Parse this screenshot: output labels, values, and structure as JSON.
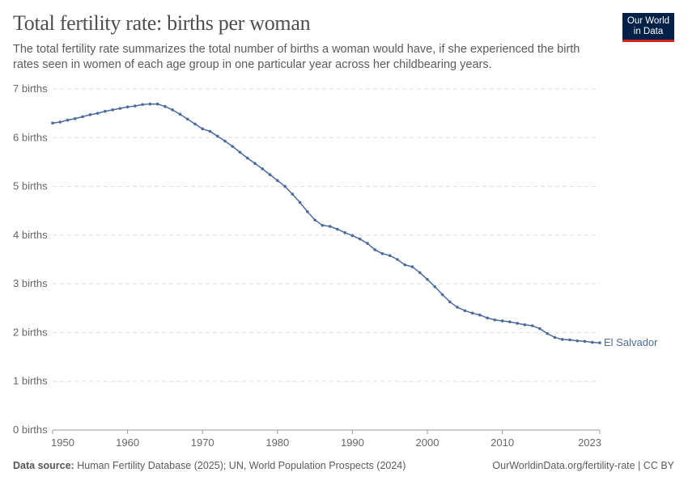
{
  "header": {
    "title": "Total fertility rate: births per woman",
    "subtitle": "The total fertility rate summarizes the total number of births a woman would have, if she experienced the birth rates seen in women of each age group in one particular year across her childbearing years.",
    "logo": "Our World in Data"
  },
  "footer": {
    "source_label": "Data source:",
    "source": "Human Fertility Database (2025); UN, World Population Prospects (2024)",
    "url": "OurWorldinData.org/fertility-rate | CC BY"
  },
  "chart_data": {
    "type": "line",
    "title": "Total fertility rate: births per woman",
    "xlim": [
      1950,
      2023
    ],
    "ylim": [
      0,
      7
    ],
    "grid": "horizontal dashed",
    "x_ticks": [
      "1950",
      "1960",
      "1970",
      "1980",
      "1990",
      "2000",
      "2010",
      "2023"
    ],
    "y_ticks": [
      "0 births",
      "1 births",
      "2 births",
      "3 births",
      "4 births",
      "5 births",
      "6 births",
      "7 births"
    ],
    "colors": {
      "series": "#4c6a9c"
    },
    "series": [
      {
        "name": "El Salvador",
        "x_start": 1950,
        "values": [
          6.3,
          6.32,
          6.36,
          6.39,
          6.43,
          6.47,
          6.5,
          6.54,
          6.57,
          6.6,
          6.63,
          6.65,
          6.68,
          6.69,
          6.69,
          6.64,
          6.57,
          6.48,
          6.38,
          6.28,
          6.18,
          6.13,
          6.03,
          5.93,
          5.82,
          5.7,
          5.58,
          5.47,
          5.36,
          5.24,
          5.12,
          5.0,
          4.84,
          4.67,
          4.48,
          4.31,
          4.2,
          4.18,
          4.12,
          4.05,
          3.99,
          3.92,
          3.83,
          3.7,
          3.62,
          3.58,
          3.5,
          3.39,
          3.35,
          3.23,
          3.09,
          2.94,
          2.78,
          2.63,
          2.52,
          2.45,
          2.4,
          2.36,
          2.3,
          2.26,
          2.24,
          2.22,
          2.19,
          2.16,
          2.14,
          2.08,
          1.98,
          1.9,
          1.86,
          1.85,
          1.83,
          1.82,
          1.8,
          1.79
        ]
      }
    ]
  }
}
